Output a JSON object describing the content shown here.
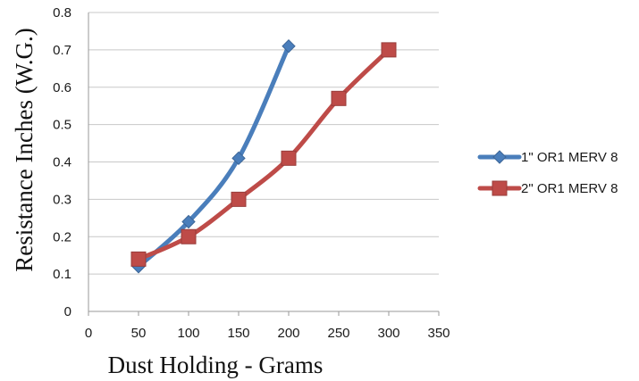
{
  "chart_data": {
    "type": "line",
    "xlabel": "Dust Holding - Grams",
    "ylabel": "Resistance Inches (W.G.)",
    "xlim": [
      0,
      350
    ],
    "ylim": [
      0,
      0.8
    ],
    "x_ticks": [
      "0",
      "50",
      "100",
      "150",
      "200",
      "250",
      "300",
      "350"
    ],
    "y_ticks": [
      "0",
      "0.1",
      "0.2",
      "0.3",
      "0.4",
      "0.5",
      "0.6",
      "0.7",
      "0.8"
    ],
    "grid": "horizontal",
    "legend_position": "right",
    "series": [
      {
        "name": "1\" OR1 MERV 8",
        "color": "#4a7ebb",
        "marker": "diamond",
        "x": [
          50,
          100,
          150,
          200
        ],
        "y": [
          0.12,
          0.24,
          0.41,
          0.71
        ]
      },
      {
        "name": "2\" OR1 MERV 8",
        "color": "#be4b48",
        "marker": "square",
        "x": [
          50,
          100,
          150,
          200,
          250,
          300
        ],
        "y": [
          0.14,
          0.2,
          0.3,
          0.41,
          0.57,
          0.7
        ]
      }
    ]
  }
}
